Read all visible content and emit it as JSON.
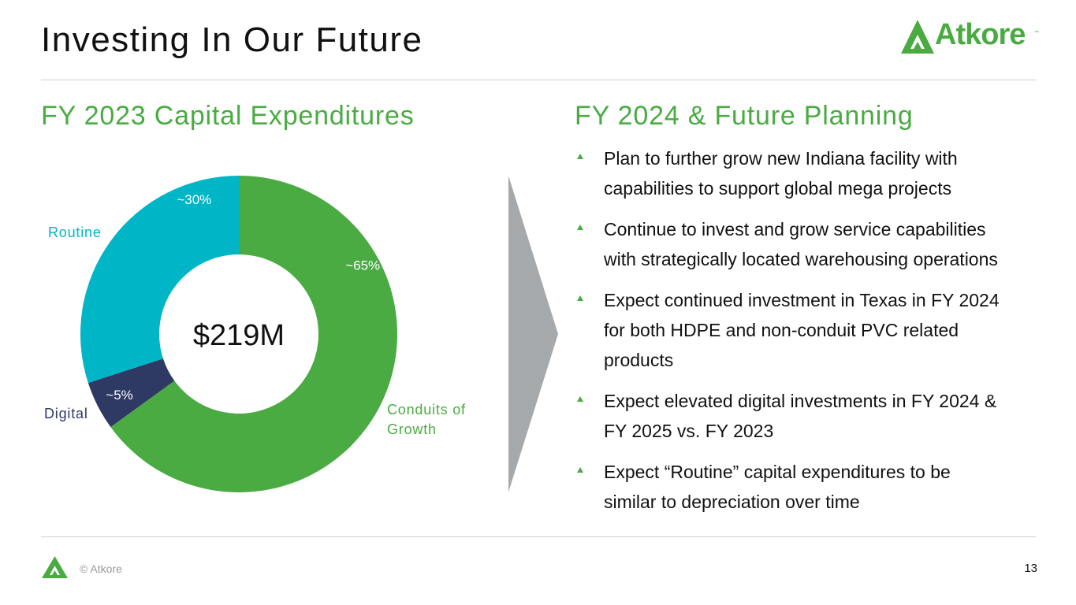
{
  "header": {
    "title": "Investing In Our Future",
    "logo_text": "Atkore",
    "logo_tm": "™"
  },
  "left": {
    "heading": "FY 2023 Capital Expenditures"
  },
  "right": {
    "heading": "FY 2024 & Future Planning",
    "bullets": [
      {
        "lines": [
          "Plan to further grow new Indiana facility with",
          "capabilities to support global mega projects"
        ]
      },
      {
        "lines": [
          "Continue to invest and grow service capabilities",
          "with strategically located warehousing operations"
        ]
      },
      {
        "lines": [
          "Expect continued investment in Texas in FY 2024",
          "for both HDPE and non-conduit PVC related",
          "products"
        ]
      },
      {
        "lines": [
          "Expect elevated digital investments in FY 2024 &",
          "FY 2025 vs. FY 2023"
        ]
      },
      {
        "lines": [
          "Expect “Routine” capital expenditures to be",
          "similar to depreciation over time"
        ]
      }
    ]
  },
  "chart_data": {
    "type": "pie",
    "variant": "donut",
    "center_label": "$219M",
    "slices": [
      {
        "name": "Conduits of Growth",
        "label_lines": [
          "Conduits of",
          "Growth"
        ],
        "value": 65,
        "value_label": "~65%",
        "color": "#4aab42"
      },
      {
        "name": "Digital",
        "label_lines": [
          "Digital"
        ],
        "value": 5,
        "value_label": "~5%",
        "color": "#2e3a64"
      },
      {
        "name": "Routine",
        "label_lines": [
          "Routine"
        ],
        "value": 30,
        "value_label": "~30%",
        "color": "#00b6c6"
      }
    ]
  },
  "footer": {
    "copyright": "© Atkore",
    "page_number": "13"
  },
  "colors": {
    "brand_green": "#4aab42",
    "arrow_gray": "#a6a9ab",
    "rule_gray": "#cfcfcf"
  }
}
